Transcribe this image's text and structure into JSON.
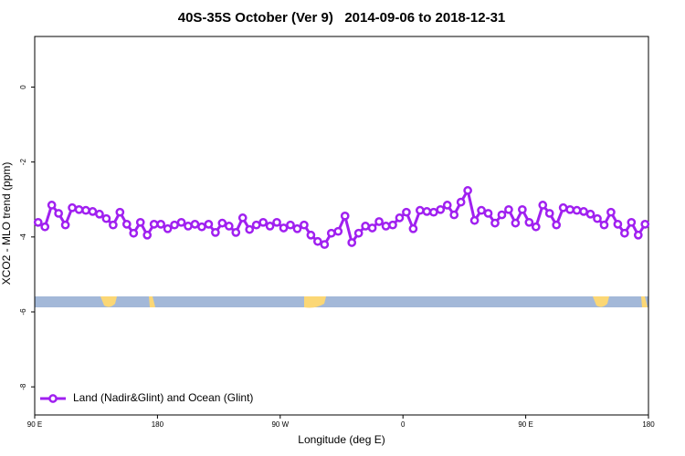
{
  "chart_data": {
    "type": "line",
    "title": "40S-35S October (Ver 9)   2014-09-06 to 2018-12-31",
    "xlabel": "Longitude (deg E)",
    "ylabel": "XCO2 - MLO trend (ppm)",
    "xlim": [
      90,
      540
    ],
    "xticks": [
      {
        "value": 90,
        "label": "90 E"
      },
      180,
      {
        "value": 270,
        "label": "90 W"
      },
      {
        "value": 360,
        "label": "0"
      },
      {
        "value": 450,
        "label": "90 E"
      },
      {
        "value": 540,
        "label": "180"
      }
    ],
    "ylim": [
      -8.75,
      1.35
    ],
    "yticks": [
      0,
      -2,
      -4,
      -6,
      -8
    ],
    "legend": "bottom-left",
    "x": [
      92.5,
      97.5,
      102.5,
      107.5,
      112.5,
      117.5,
      122.5,
      127.5,
      132.5,
      137.5,
      142.5,
      147.5,
      152.5,
      157.5,
      162.5,
      167.5,
      172.5,
      177.5,
      182.5,
      187.5,
      192.5,
      197.5,
      202.5,
      207.5,
      212.5,
      217.5,
      222.5,
      227.5,
      232.5,
      237.5,
      242.5,
      247.5,
      252.5,
      257.5,
      262.5,
      267.5,
      272.5,
      277.5,
      282.5,
      287.5,
      292.5,
      297.5,
      302.5,
      307.5,
      312.5,
      317.5,
      322.5,
      327.5,
      332.5,
      337.5,
      342.5,
      347.5,
      352.5,
      357.5,
      362.5,
      367.5,
      372.5,
      377.5,
      382.5,
      387.5,
      392.5,
      397.5,
      402.5,
      407.5,
      412.5,
      417.5,
      422.5,
      427.5,
      432.5,
      437.5,
      442.5,
      447.5,
      452.5,
      457.5,
      462.5,
      467.5,
      472.5,
      477.5,
      482.5,
      487.5,
      492.5,
      497.5,
      502.5,
      507.5,
      512.5,
      517.5,
      522.5,
      527.5,
      532.5,
      537.5
    ],
    "series": [
      {
        "name": "Land (Nadir&Glint) and Ocean (Glint)",
        "color": "#a020f0",
        "values": [
          -3.61,
          -3.73,
          -3.15,
          -3.37,
          -3.68,
          -3.22,
          -3.27,
          -3.29,
          -3.32,
          -3.39,
          -3.51,
          -3.68,
          -3.34,
          -3.66,
          -3.9,
          -3.61,
          -3.95,
          -3.66,
          -3.66,
          -3.78,
          -3.68,
          -3.61,
          -3.71,
          -3.66,
          -3.73,
          -3.66,
          -3.88,
          -3.63,
          -3.71,
          -3.88,
          -3.49,
          -3.8,
          -3.68,
          -3.61,
          -3.71,
          -3.61,
          -3.76,
          -3.68,
          -3.78,
          -3.68,
          -3.95,
          -4.12,
          -4.2,
          -3.9,
          -3.85,
          -3.44,
          -4.15,
          -3.9,
          -3.71,
          -3.76,
          -3.59,
          -3.71,
          -3.68,
          -3.49,
          -3.34,
          -3.78,
          -3.29,
          -3.32,
          -3.34,
          -3.27,
          -3.15,
          -3.41,
          -3.07,
          -2.76,
          -3.56,
          -3.29,
          -3.37,
          -3.63,
          -3.41,
          -3.27,
          -3.63,
          -3.27,
          -3.61,
          -3.73,
          -3.15,
          -3.37,
          -3.68,
          -3.22,
          -3.27,
          -3.29,
          -3.32,
          -3.39,
          -3.51,
          -3.68,
          -3.34,
          -3.66,
          -3.9,
          -3.61,
          -3.95,
          -3.66
        ]
      }
    ]
  }
}
